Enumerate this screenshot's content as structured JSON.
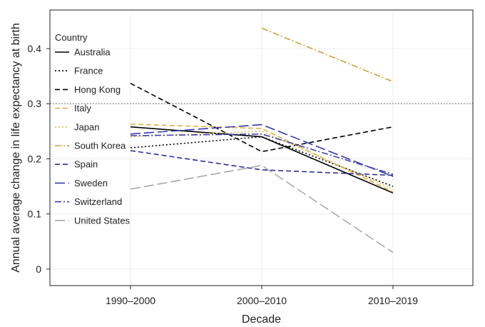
{
  "chart_data": {
    "type": "line",
    "xlabel": "Decade",
    "ylabel": "Annual average change in life expectancy at birth",
    "categories": [
      "1990–2000",
      "2000–2010",
      "2010–2019"
    ],
    "ylim": [
      -0.03,
      0.47
    ],
    "yticks": [
      0,
      0.1,
      0.2,
      0.3,
      0.4
    ],
    "ytick_labels": [
      "0",
      "0.1",
      "0.2",
      "0.3",
      "0.4"
    ],
    "reference_line": 0.3,
    "grid": true,
    "legend": {
      "title": "Country",
      "placement": "top-left"
    },
    "series": [
      {
        "name": "Australia",
        "values": [
          0.258,
          0.24,
          0.138
        ],
        "color": "#000000",
        "dash": "solid"
      },
      {
        "name": "France",
        "values": [
          0.22,
          0.24,
          0.15
        ],
        "color": "#000000",
        "dash": "dot"
      },
      {
        "name": "Hong Kong",
        "values": [
          0.337,
          0.213,
          0.258
        ],
        "color": "#000000",
        "dash": "dash"
      },
      {
        "name": "Italy",
        "values": [
          0.263,
          0.255,
          0.14
        ],
        "color": "#E0B040",
        "dash": "dash"
      },
      {
        "name": "Japan",
        "values": [
          0.24,
          0.25,
          0.145
        ],
        "color": "#D8C050",
        "dash": "dot"
      },
      {
        "name": "South Korea",
        "values": [
          null,
          0.437,
          0.34
        ],
        "color": "#D4A030",
        "dash": "dashdot"
      },
      {
        "name": "Spain",
        "values": [
          0.215,
          0.18,
          0.17
        ],
        "color": "#2E2E9E",
        "dash": "dash"
      },
      {
        "name": "Sweden",
        "values": [
          0.245,
          0.262,
          0.168
        ],
        "color": "#3838B0",
        "dash": "longdash"
      },
      {
        "name": "Switzerland",
        "values": [
          0.242,
          0.245,
          0.172
        ],
        "color": "#4040B8",
        "dash": "dashdot"
      },
      {
        "name": "United States",
        "values": [
          0.145,
          0.188,
          0.03
        ],
        "color": "#A8A8A8",
        "dash": "longdash"
      }
    ]
  }
}
